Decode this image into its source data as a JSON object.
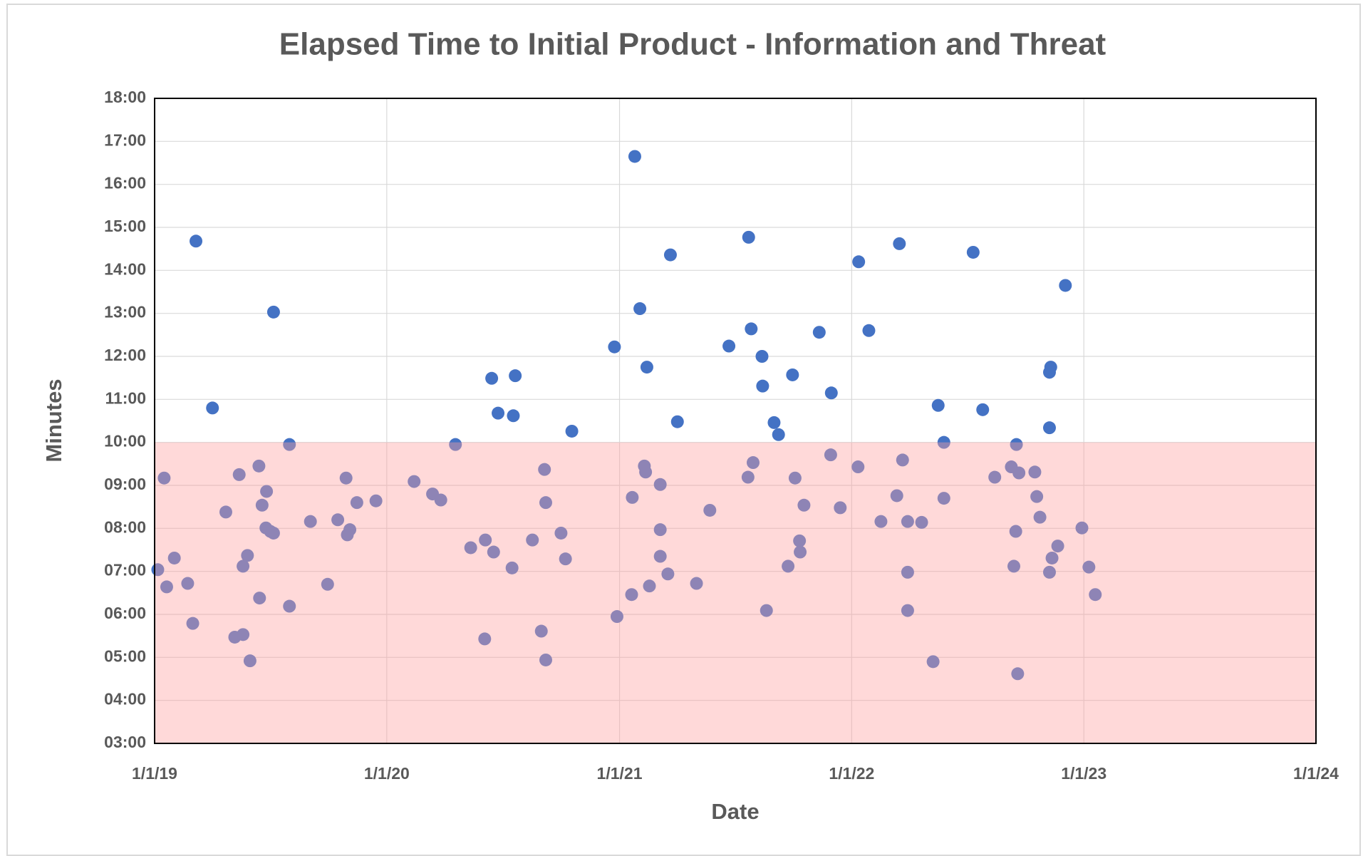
{
  "chart_data": {
    "type": "scatter",
    "title": "Elapsed Time to Initial Product - Information and Threat",
    "x_label": "Date",
    "y_label": "Minutes",
    "color": "#4472c4",
    "band_max": 10,
    "band_color": "#ff9f9f",
    "grid": true,
    "xlim": [
      "2019-01-01",
      "2024-01-01"
    ],
    "xticks": [
      {
        "value": "2019-01-01",
        "label": "1/1/19"
      },
      {
        "value": "2020-01-01",
        "label": "1/1/20"
      },
      {
        "value": "2021-01-01",
        "label": "1/1/21"
      },
      {
        "value": "2022-01-01",
        "label": "1/1/22"
      },
      {
        "value": "2023-01-01",
        "label": "1/1/23"
      },
      {
        "value": "2024-01-01",
        "label": "1/1/24"
      }
    ],
    "ylim": [
      3,
      18
    ],
    "yticks": [
      {
        "value": 3,
        "label": "03:00"
      },
      {
        "value": 4,
        "label": "04:00"
      },
      {
        "value": 5,
        "label": "05:00"
      },
      {
        "value": 6,
        "label": "06:00"
      },
      {
        "value": 7,
        "label": "07:00"
      },
      {
        "value": 8,
        "label": "08:00"
      },
      {
        "value": 9,
        "label": "09:00"
      },
      {
        "value": 10,
        "label": "10:00"
      },
      {
        "value": 11,
        "label": "11:00"
      },
      {
        "value": 12,
        "label": "12:00"
      },
      {
        "value": 13,
        "label": "13:00"
      },
      {
        "value": 14,
        "label": "14:00"
      },
      {
        "value": 15,
        "label": "15:00"
      },
      {
        "value": 16,
        "label": "16:00"
      },
      {
        "value": 17,
        "label": "17:00"
      },
      {
        "value": 18,
        "label": "18:00"
      }
    ],
    "x": [
      "2019-01-06",
      "2019-01-16",
      "2019-01-20",
      "2019-02-01",
      "2019-02-22",
      "2019-03-02",
      "2019-03-07",
      "2019-04-02",
      "2019-04-23",
      "2019-05-07",
      "2019-05-14",
      "2019-05-20",
      "2019-05-20",
      "2019-05-27",
      "2019-05-31",
      "2019-06-14",
      "2019-06-15",
      "2019-06-19",
      "2019-06-26",
      "2019-06-25",
      "2019-07-02",
      "2019-07-07",
      "2019-07-07",
      "2019-08-01",
      "2019-08-01",
      "2019-09-03",
      "2019-09-30",
      "2019-10-16",
      "2019-10-29",
      "2019-10-31",
      "2019-11-04",
      "2019-11-15",
      "2019-12-15",
      "2020-02-13",
      "2020-03-13",
      "2020-03-26",
      "2020-04-18",
      "2020-05-12",
      "2020-06-03",
      "2020-06-04",
      "2020-06-14",
      "2020-06-17",
      "2020-06-24",
      "2020-07-16",
      "2020-07-18",
      "2020-07-21",
      "2020-08-17",
      "2020-08-31",
      "2020-09-05",
      "2020-09-07",
      "2020-09-07",
      "2020-10-01",
      "2020-10-08",
      "2020-10-18",
      "2020-12-24",
      "2020-12-28",
      "2021-01-20",
      "2021-01-21",
      "2021-01-25",
      "2021-02-02",
      "2021-02-09",
      "2021-02-11",
      "2021-02-13",
      "2021-02-17",
      "2021-03-06",
      "2021-03-06",
      "2021-03-06",
      "2021-03-18",
      "2021-03-22",
      "2021-04-02",
      "2021-05-02",
      "2021-05-23",
      "2021-06-22",
      "2021-07-22",
      "2021-07-23",
      "2021-07-27",
      "2021-07-30",
      "2021-08-13",
      "2021-08-14",
      "2021-08-20",
      "2021-09-01",
      "2021-09-08",
      "2021-09-23",
      "2021-09-30",
      "2021-10-04",
      "2021-10-11",
      "2021-10-12",
      "2021-10-18",
      "2021-11-11",
      "2021-11-29",
      "2021-11-30",
      "2021-12-14",
      "2022-01-11",
      "2022-01-12",
      "2022-01-28",
      "2022-02-16",
      "2022-03-13",
      "2022-03-17",
      "2022-03-22",
      "2022-03-30",
      "2022-03-30",
      "2022-03-30",
      "2022-04-21",
      "2022-05-09",
      "2022-05-17",
      "2022-05-26",
      "2022-05-26",
      "2022-07-11",
      "2022-07-26",
      "2022-08-14",
      "2022-09-09",
      "2022-09-13",
      "2022-09-16",
      "2022-09-17",
      "2022-09-19",
      "2022-09-21",
      "2022-10-16",
      "2022-10-19",
      "2022-10-24",
      "2022-11-08",
      "2022-11-08",
      "2022-11-08",
      "2022-11-10",
      "2022-11-12",
      "2022-11-21",
      "2022-12-03",
      "2022-12-29",
      "2023-01-09",
      "2023-01-19"
    ],
    "values": [
      7.04,
      9.17,
      6.64,
      7.31,
      6.72,
      5.79,
      14.68,
      10.8,
      8.38,
      5.47,
      9.25,
      5.53,
      7.12,
      7.37,
      4.92,
      9.45,
      6.38,
      8.54,
      8.86,
      8.01,
      7.93,
      7.89,
      13.03,
      9.95,
      6.19,
      8.16,
      6.7,
      8.2,
      9.17,
      7.85,
      7.97,
      8.6,
      8.64,
      9.09,
      8.8,
      8.66,
      9.95,
      7.55,
      5.43,
      7.73,
      11.49,
      7.45,
      10.68,
      7.08,
      10.62,
      11.55,
      7.73,
      5.61,
      9.37,
      4.94,
      8.6,
      7.89,
      7.29,
      10.26,
      12.22,
      5.95,
      6.46,
      8.72,
      16.65,
      13.11,
      9.45,
      9.31,
      11.75,
      6.66,
      9.02,
      7.97,
      7.35,
      6.94,
      14.36,
      10.48,
      6.72,
      8.42,
      12.24,
      9.19,
      14.77,
      12.64,
      9.53,
      12.0,
      11.31,
      6.09,
      10.46,
      10.18,
      7.12,
      11.57,
      9.17,
      7.71,
      7.45,
      8.54,
      12.56,
      9.71,
      11.15,
      8.48,
      9.43,
      14.2,
      12.6,
      8.16,
      8.76,
      14.62,
      9.59,
      8.16,
      6.98,
      6.09,
      8.14,
      4.9,
      10.86,
      10.0,
      8.7,
      14.42,
      10.76,
      9.19,
      9.43,
      7.12,
      7.93,
      9.95,
      4.62,
      9.29,
      9.31,
      8.74,
      8.26,
      6.98,
      11.63,
      10.34,
      11.75,
      7.31,
      7.59,
      13.65,
      8.01,
      7.1,
      6.46
    ]
  }
}
